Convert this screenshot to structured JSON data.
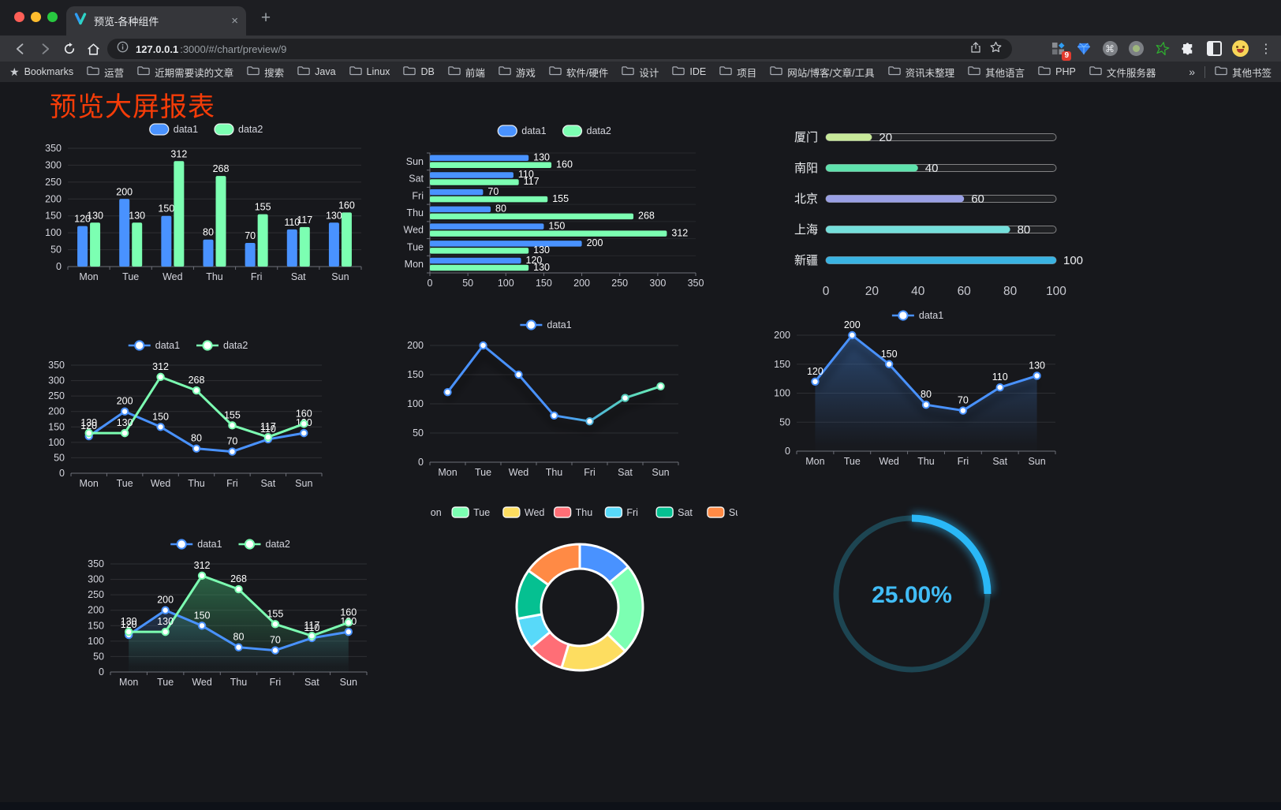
{
  "browser": {
    "tab_title": "预览-各种组件",
    "url": {
      "host": "127.0.0.1",
      "rest": ":3000/#/chart/preview/9"
    },
    "extension_badge": "9",
    "icons": {
      "close_tab": "×",
      "new_tab": "+",
      "menu": "⋮",
      "command": "⌘"
    }
  },
  "bookmarks_bar": {
    "starred_label": "Bookmarks",
    "folders": [
      "运营",
      "近期需要读的文章",
      "搜索",
      "Java",
      "Linux",
      "DB",
      "前端",
      "游戏",
      "软件/硬件",
      "设计",
      "IDE",
      "项目",
      "网站/博客/文章/工具",
      "资讯未整理",
      "其他语言",
      "PHP",
      "文件服务器"
    ],
    "overflow_chevron": "»",
    "other_bookmarks": "其他书签"
  },
  "page": {
    "title": "预览大屏报表",
    "title_color": "#f53c08"
  },
  "chart_data": [
    {
      "id": "bar-vertical",
      "type": "bar",
      "legend_position": "top",
      "grid": true,
      "categories": [
        "Mon",
        "Tue",
        "Wed",
        "Thu",
        "Fri",
        "Sat",
        "Sun"
      ],
      "series": [
        {
          "name": "data1",
          "color": "#4992ff",
          "values": [
            120,
            200,
            150,
            80,
            70,
            110,
            130
          ]
        },
        {
          "name": "data2",
          "color": "#7cffb2",
          "values": [
            130,
            130,
            312,
            268,
            155,
            117,
            160
          ]
        }
      ],
      "ylim": [
        0,
        350
      ],
      "ytick_step": 50
    },
    {
      "id": "bar-horizontal",
      "type": "bar",
      "orientation": "horizontal",
      "legend_position": "top",
      "categories": [
        "Mon",
        "Tue",
        "Wed",
        "Thu",
        "Fri",
        "Sat",
        "Sun"
      ],
      "display_order_top_to_bottom": [
        "Sun",
        "Sat",
        "Fri",
        "Thu",
        "Wed",
        "Tue",
        "Mon"
      ],
      "series": [
        {
          "name": "data1",
          "color": "#4992ff",
          "values": [
            120,
            200,
            150,
            80,
            70,
            110,
            130
          ]
        },
        {
          "name": "data2",
          "color": "#7cffb2",
          "values": [
            130,
            130,
            312,
            268,
            155,
            117,
            160
          ]
        }
      ],
      "xlim": [
        0,
        350
      ],
      "xtick_step": 50
    },
    {
      "id": "progress-bars",
      "type": "bar",
      "orientation": "horizontal",
      "categories": [
        "厦门",
        "南阳",
        "北京",
        "上海",
        "新疆"
      ],
      "values": [
        20,
        40,
        60,
        80,
        100
      ],
      "colors": [
        "#c8e99a",
        "#5fe2ad",
        "#9aa0e5",
        "#74dfdb",
        "#3ab3e2"
      ],
      "xlim": [
        0,
        100
      ],
      "xticks": [
        0,
        20,
        40,
        60,
        80,
        100
      ]
    },
    {
      "id": "line-two-series",
      "type": "line",
      "legend_position": "top",
      "show_labels": true,
      "categories": [
        "Mon",
        "Tue",
        "Wed",
        "Thu",
        "Fri",
        "Sat",
        "Sun"
      ],
      "series": [
        {
          "name": "data1",
          "color": "#4992ff",
          "values": [
            120,
            200,
            150,
            80,
            70,
            110,
            130
          ]
        },
        {
          "name": "data2",
          "color": "#7cffb2",
          "values": [
            130,
            130,
            312,
            268,
            155,
            117,
            160
          ]
        }
      ],
      "ylim": [
        0,
        350
      ],
      "ytick_step": 50
    },
    {
      "id": "line-gradient",
      "type": "line",
      "legend_position": "top",
      "show_labels": false,
      "shadow": true,
      "categories": [
        "Mon",
        "Tue",
        "Wed",
        "Thu",
        "Fri",
        "Sat",
        "Sun"
      ],
      "series": [
        {
          "name": "data1",
          "color": "#4992ff",
          "gradient": [
            "#4992ff",
            "#7cffb2"
          ],
          "values": [
            120,
            200,
            150,
            80,
            70,
            110,
            130
          ]
        }
      ],
      "ylim": [
        0,
        200
      ],
      "ytick_step": 50
    },
    {
      "id": "area-single",
      "type": "area",
      "legend_position": "top",
      "show_labels": true,
      "categories": [
        "Mon",
        "Tue",
        "Wed",
        "Thu",
        "Fri",
        "Sat",
        "Sun"
      ],
      "series": [
        {
          "name": "data1",
          "color": "#4992ff",
          "area_color": "#3a6eb4",
          "values": [
            120,
            200,
            150,
            80,
            70,
            110,
            130
          ]
        }
      ],
      "ylim": [
        0,
        200
      ],
      "ytick_step": 50
    },
    {
      "id": "area-two-series",
      "type": "area",
      "legend_position": "top",
      "show_labels": true,
      "categories": [
        "Mon",
        "Tue",
        "Wed",
        "Thu",
        "Fri",
        "Sat",
        "Sun"
      ],
      "series": [
        {
          "name": "data1",
          "color": "#4992ff",
          "area_color": "#3a6eb4",
          "values": [
            120,
            200,
            150,
            80,
            70,
            110,
            130
          ]
        },
        {
          "name": "data2",
          "color": "#7cffb2",
          "area_color": "#3fae6e",
          "values": [
            130,
            130,
            312,
            268,
            155,
            117,
            160
          ]
        }
      ],
      "ylim": [
        0,
        350
      ],
      "ytick_step": 50
    },
    {
      "id": "donut",
      "type": "pie",
      "legend_position": "top",
      "categories": [
        "Mon",
        "Tue",
        "Wed",
        "Thu",
        "Fri",
        "Sat",
        "Sun"
      ],
      "values": [
        120,
        200,
        150,
        80,
        70,
        110,
        130
      ],
      "colors": [
        "#4992ff",
        "#7cffb2",
        "#fddd60",
        "#ff6e76",
        "#58d9f9",
        "#05c091",
        "#ff8a45"
      ]
    },
    {
      "id": "gauge",
      "type": "gauge",
      "percent": 25,
      "label": "25.00%",
      "progress_color": "#2ab8f7",
      "track_color": "#1d4552",
      "text_color": "#41bdf7"
    }
  ]
}
